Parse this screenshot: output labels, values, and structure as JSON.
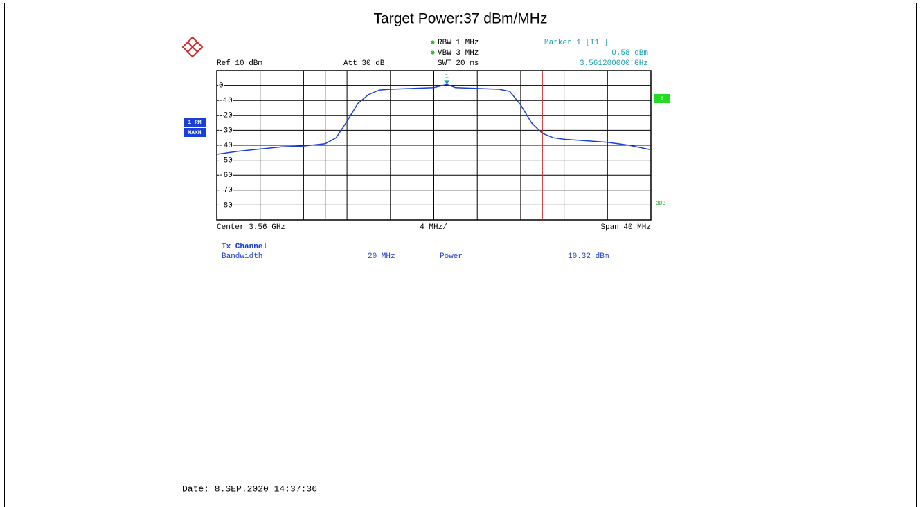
{
  "header": {
    "title": "Target Power:37 dBm/MHz"
  },
  "settings": {
    "ref": "Ref 10 dBm",
    "att": "Att 30 dB",
    "rbw": "RBW 1 MHz",
    "vbw": "VBW 3 MHz",
    "swt": "SWT 20 ms",
    "trace_label": "1 RM",
    "trace_mode": "MAXH",
    "trigger": "A",
    "note": "3DB"
  },
  "chart_data": {
    "type": "line",
    "x": [
      3.54,
      3.542,
      3.544,
      3.546,
      3.548,
      3.55,
      3.551,
      3.552,
      3.553,
      3.554,
      3.555,
      3.556,
      3.558,
      3.56,
      3.5612,
      3.562,
      3.564,
      3.566,
      3.567,
      3.568,
      3.569,
      3.57,
      3.571,
      3.572,
      3.574,
      3.576,
      3.578,
      3.58
    ],
    "series": [
      {
        "name": "1 RM",
        "color": "#1a3fd6",
        "values": [
          -46,
          -44,
          -42.5,
          -41,
          -40.5,
          -39,
          -35,
          -24,
          -12,
          -6,
          -3,
          -2.5,
          -2,
          -1.5,
          0.58,
          -1.5,
          -2,
          -2.5,
          -4,
          -13,
          -25,
          -32,
          -35,
          -36,
          -37,
          -38,
          -40,
          -43
        ]
      }
    ],
    "xlim": [
      3.54,
      3.58
    ],
    "xticks": [
      3.54,
      3.544,
      3.548,
      3.552,
      3.556,
      3.56,
      3.564,
      3.568,
      3.572,
      3.576,
      3.58
    ],
    "ylim": [
      -90,
      10
    ],
    "yticks": [
      0,
      -10,
      -20,
      -30,
      -40,
      -50,
      -60,
      -70,
      -80
    ],
    "grid": true,
    "channel_lines": {
      "color": "#e02020",
      "x": [
        3.55,
        3.57
      ]
    },
    "marker": {
      "name": "Marker 1 [T1 ]",
      "label": "1",
      "x": 3.5612,
      "value": 0.58,
      "value_label": "0.58 dBm",
      "x_label": "3.561200000 GHz",
      "color": "#1aa0b0"
    },
    "xlabel_left": "Center 3.56 GHz",
    "xlabel_mid": "4 MHz/",
    "xlabel_right": "Span 40 MHz"
  },
  "results": {
    "heading": "Tx Channel",
    "bandwidth_label": "Bandwidth",
    "bandwidth": "20 MHz",
    "power_label": "Power",
    "power": "10.32 dBm"
  },
  "footer": {
    "date": "Date: 8.SEP.2020  14:37:36"
  }
}
